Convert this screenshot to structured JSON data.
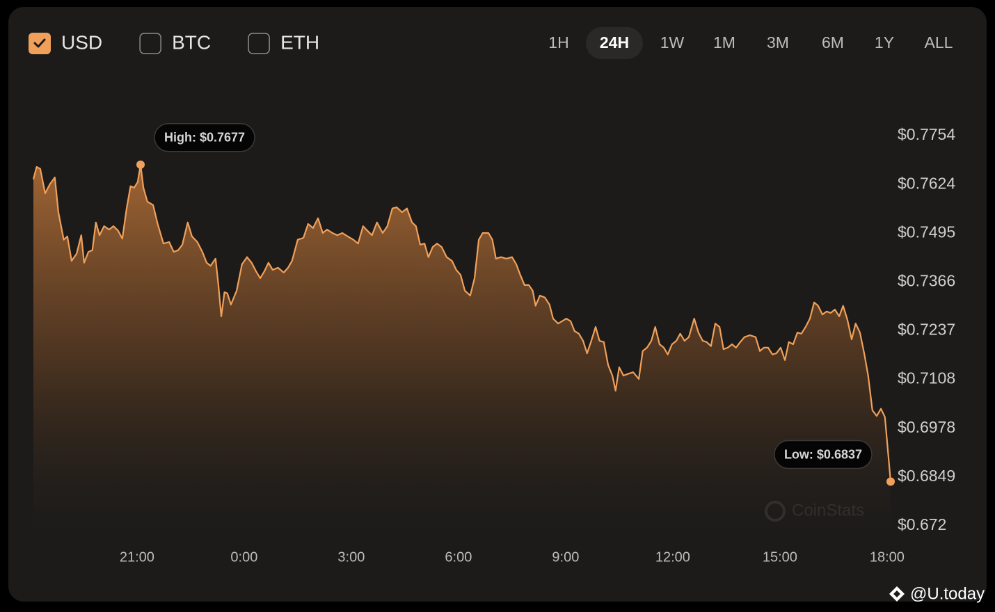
{
  "currencies": [
    {
      "label": "USD",
      "checked": true
    },
    {
      "label": "BTC",
      "checked": false
    },
    {
      "label": "ETH",
      "checked": false
    }
  ],
  "ranges": {
    "options": [
      "1H",
      "24H",
      "1W",
      "1M",
      "3M",
      "6M",
      "1Y",
      "ALL"
    ],
    "active": "24H"
  },
  "watermark": "CoinStats",
  "credit": "@U.today",
  "chart_data": {
    "type": "area",
    "annotations": [
      "High: $0.7677",
      "Low: $0.6837"
    ],
    "color": "#f0a05a",
    "x": [
      18.1,
      18.19,
      18.29,
      18.43,
      18.56,
      18.7,
      18.8,
      18.95,
      19.05,
      19.17,
      19.31,
      19.44,
      19.52,
      19.64,
      19.75,
      19.85,
      19.95,
      20.08,
      20.22,
      20.34,
      20.47,
      20.59,
      20.71,
      20.82,
      20.92,
      21.02,
      21.1,
      21.18,
      21.29,
      21.45,
      21.58,
      21.74,
      21.9,
      22.03,
      22.15,
      22.27,
      22.42,
      22.54,
      22.69,
      22.83,
      22.95,
      23.06,
      23.2,
      23.28,
      23.36,
      23.45,
      23.53,
      23.63,
      23.79,
      23.94,
      24.08,
      24.21,
      24.33,
      24.45,
      24.57,
      24.68,
      24.8,
      24.95,
      25.11,
      25.23,
      25.34,
      25.5,
      25.66,
      25.79,
      25.93,
      26.07,
      26.2,
      26.32,
      26.47,
      26.61,
      26.75,
      26.9,
      27.06,
      27.19,
      27.33,
      27.45,
      27.58,
      27.72,
      27.88,
      28.01,
      28.15,
      28.27,
      28.42,
      28.56,
      28.7,
      28.81,
      28.93,
      29.05,
      29.16,
      29.28,
      29.4,
      29.53,
      29.67,
      29.82,
      29.94,
      30.06,
      30.18,
      30.33,
      30.45,
      30.57,
      30.68,
      30.84,
      30.95,
      31.05,
      31.19,
      31.34,
      31.5,
      31.62,
      31.73,
      31.85,
      31.97,
      32.08,
      32.16,
      32.28,
      32.42,
      32.55,
      32.65,
      32.79,
      32.9,
      33.02,
      33.14,
      33.25,
      33.37,
      33.49,
      33.6,
      33.72,
      33.84,
      33.95,
      34.07,
      34.19,
      34.31,
      34.4,
      34.5,
      34.62,
      34.73,
      34.89,
      35.05,
      35.16,
      35.28,
      35.4,
      35.51,
      35.63,
      35.75,
      35.86,
      35.98,
      36.1,
      36.21,
      36.33,
      36.45,
      36.6,
      36.72,
      36.84,
      36.95,
      37.07,
      37.19,
      37.31,
      37.42,
      37.54,
      37.66,
      37.77,
      37.89,
      38.01,
      38.16,
      38.32,
      38.44,
      38.55,
      38.67,
      38.79,
      38.9,
      39.02,
      39.14,
      39.25,
      39.37,
      39.49,
      39.6,
      39.72,
      39.84,
      39.96,
      40.07,
      40.19,
      40.31,
      40.42,
      40.54,
      40.66,
      40.77,
      40.89,
      41.01,
      41.12,
      41.24,
      41.36,
      41.47,
      41.59,
      41.71,
      41.83,
      41.94,
      42.1
    ],
    "values": [
      0.7638,
      0.7671,
      0.7666,
      0.7601,
      0.7625,
      0.7643,
      0.7551,
      0.7478,
      0.7487,
      0.7422,
      0.7441,
      0.749,
      0.7417,
      0.7446,
      0.745,
      0.7524,
      0.749,
      0.7514,
      0.7505,
      0.7514,
      0.7502,
      0.7481,
      0.7561,
      0.762,
      0.7616,
      0.7631,
      0.7677,
      0.7616,
      0.7579,
      0.757,
      0.752,
      0.7468,
      0.7472,
      0.7446,
      0.745,
      0.7465,
      0.7524,
      0.7487,
      0.7472,
      0.7446,
      0.7417,
      0.7409,
      0.7428,
      0.7358,
      0.7275,
      0.7339,
      0.7336,
      0.7306,
      0.7343,
      0.7413,
      0.7432,
      0.7417,
      0.7395,
      0.7376,
      0.7395,
      0.7417,
      0.7398,
      0.7404,
      0.7391,
      0.7404,
      0.7422,
      0.7478,
      0.7483,
      0.752,
      0.7509,
      0.7535,
      0.7496,
      0.7505,
      0.7496,
      0.749,
      0.7496,
      0.7487,
      0.7478,
      0.7468,
      0.7514,
      0.7502,
      0.749,
      0.7524,
      0.7496,
      0.7514,
      0.7561,
      0.7564,
      0.7551,
      0.7561,
      0.7524,
      0.7514,
      0.7465,
      0.7468,
      0.7432,
      0.7459,
      0.7468,
      0.7459,
      0.7432,
      0.7422,
      0.7398,
      0.7385,
      0.7343,
      0.733,
      0.7376,
      0.7478,
      0.7496,
      0.7496,
      0.7478,
      0.7428,
      0.7432,
      0.7428,
      0.7432,
      0.7413,
      0.7385,
      0.7358,
      0.7358,
      0.7343,
      0.7303,
      0.733,
      0.7325,
      0.7306,
      0.7269,
      0.7256,
      0.7262,
      0.7269,
      0.7262,
      0.7236,
      0.7229,
      0.721,
      0.7177,
      0.721,
      0.7247,
      0.721,
      0.7207,
      0.7146,
      0.7118,
      0.7078,
      0.714,
      0.7118,
      0.7122,
      0.7127,
      0.7109,
      0.7183,
      0.7192,
      0.721,
      0.7247,
      0.7201,
      0.7192,
      0.7174,
      0.7201,
      0.721,
      0.7229,
      0.721,
      0.722,
      0.7269,
      0.7232,
      0.721,
      0.7207,
      0.7196,
      0.7256,
      0.7247,
      0.7188,
      0.7192,
      0.7201,
      0.7192,
      0.7207,
      0.722,
      0.7225,
      0.722,
      0.7183,
      0.7192,
      0.7192,
      0.7174,
      0.7177,
      0.7192,
      0.7159,
      0.7207,
      0.7201,
      0.7232,
      0.7229,
      0.7247,
      0.7269,
      0.7312,
      0.7303,
      0.728,
      0.7288,
      0.7284,
      0.7293,
      0.7275,
      0.7303,
      0.7266,
      0.7214,
      0.7256,
      0.7232,
      0.7177,
      0.7118,
      0.7026,
      0.7011,
      0.703,
      0.7008,
      0.6837
    ],
    "xlim": [
      18.1,
      42.1
    ],
    "xticks": [
      {
        "value": 21,
        "label": "21:00"
      },
      {
        "value": 24,
        "label": "0:00"
      },
      {
        "value": 27,
        "label": "3:00"
      },
      {
        "value": 30,
        "label": "6:00"
      },
      {
        "value": 33,
        "label": "9:00"
      },
      {
        "value": 36,
        "label": "12:00"
      },
      {
        "value": 39,
        "label": "15:00"
      },
      {
        "value": 42,
        "label": "18:00"
      }
    ],
    "ylim": [
      0.672,
      0.7754
    ],
    "yticks": [
      {
        "value": 0.7754,
        "label": "$0.7754"
      },
      {
        "value": 0.7624,
        "label": "$0.7624"
      },
      {
        "value": 0.7495,
        "label": "$0.7495"
      },
      {
        "value": 0.7366,
        "label": "$0.7366"
      },
      {
        "value": 0.7237,
        "label": "$0.7237"
      },
      {
        "value": 0.7108,
        "label": "$0.7108"
      },
      {
        "value": 0.6978,
        "label": "$0.6978"
      },
      {
        "value": 0.6849,
        "label": "$0.6849"
      },
      {
        "value": 0.672,
        "label": "$0.672"
      }
    ],
    "grid": false
  }
}
